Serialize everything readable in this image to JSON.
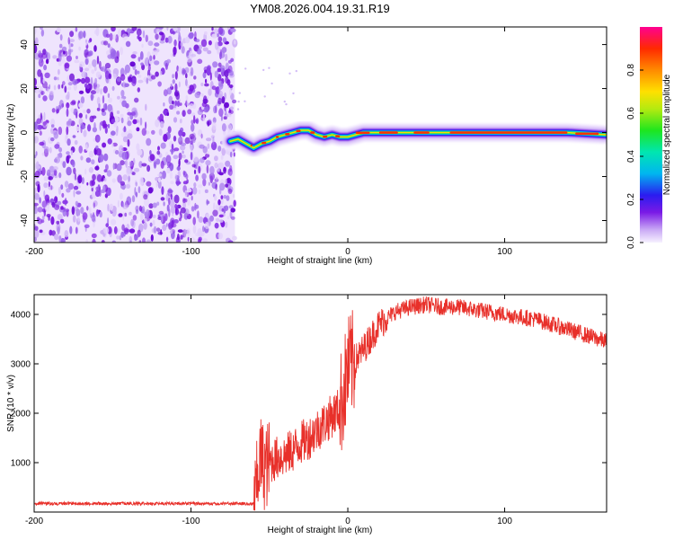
{
  "chart_data": [
    {
      "type": "heatmap",
      "title": "YM08.2026.004.19.31.R19",
      "xlabel": "Height of straight line (km)",
      "ylabel": "Frequency (Hz)",
      "xlim": [
        -200,
        165
      ],
      "ylim": [
        -50,
        48
      ],
      "xticks": [
        -200,
        -100,
        0,
        100
      ],
      "yticks": [
        -40,
        -20,
        0,
        20,
        40
      ],
      "noise_region_x": [
        -200,
        -72
      ],
      "signal_track": {
        "x": [
          -75,
          -70,
          -65,
          -60,
          -55,
          -50,
          -45,
          -40,
          -35,
          -30,
          -25,
          -20,
          -15,
          -10,
          -5,
          0,
          10,
          20,
          40,
          60,
          80,
          100,
          120,
          140,
          165
        ],
        "freq": [
          -4,
          -3,
          -5,
          -7,
          -5,
          -4,
          -2,
          -1,
          0,
          1,
          1,
          -1,
          -2,
          -1,
          -2,
          -2,
          0,
          0,
          0,
          0,
          0,
          0,
          0,
          0,
          -1
        ]
      },
      "colorbar": {
        "label": "Normalized spectral amplitude",
        "range": [
          0.0,
          1.0
        ],
        "ticks": [
          "0.0",
          "0.2",
          "0.4",
          "0.6",
          "0.8"
        ]
      }
    },
    {
      "type": "line",
      "xlabel": "Height of straight line (km)",
      "ylabel": "SNR (10 * v/v)",
      "xlim": [
        -200,
        165
      ],
      "ylim": [
        0,
        4400
      ],
      "xticks": [
        -200,
        -100,
        0,
        100
      ],
      "yticks": [
        1000,
        2000,
        3000,
        4000
      ],
      "color": "#e8302a",
      "series": [
        {
          "name": "SNR",
          "x": [
            -200,
            -150,
            -100,
            -60,
            -59,
            -56,
            -53,
            -50,
            -45,
            -40,
            -35,
            -30,
            -25,
            -20,
            -15,
            -10,
            -5,
            -3,
            -1,
            0,
            3,
            10,
            20,
            30,
            40,
            50,
            60,
            70,
            80,
            90,
            100,
            110,
            120,
            130,
            140,
            150,
            160,
            165
          ],
          "values": [
            150,
            150,
            150,
            150,
            300,
            1100,
            900,
            1000,
            1100,
            1150,
            1250,
            1400,
            1500,
            1650,
            1800,
            1950,
            2100,
            2400,
            2700,
            2900,
            3000,
            3300,
            3800,
            4050,
            4150,
            4200,
            4150,
            4150,
            4100,
            4050,
            4000,
            3950,
            3900,
            3800,
            3700,
            3600,
            3500,
            3450
          ]
        }
      ]
    }
  ]
}
